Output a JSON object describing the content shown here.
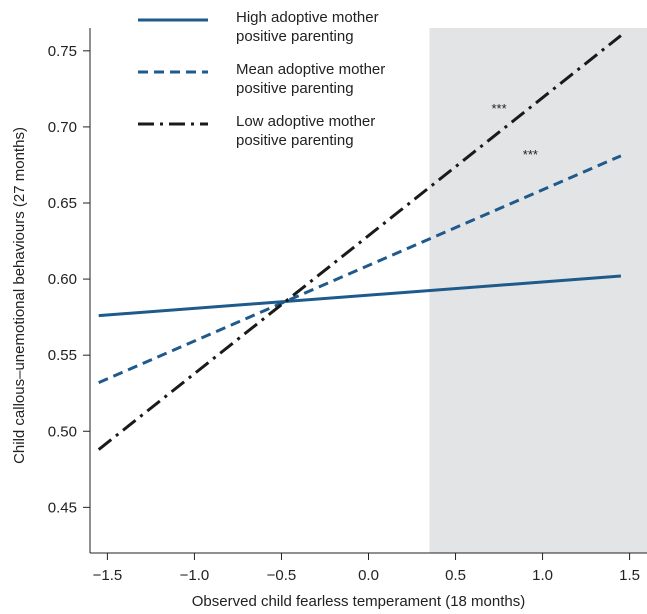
{
  "chart_data": {
    "type": "line",
    "title": "",
    "xlabel": "Observed child fearless temperament (18 months)",
    "ylabel": "Child callous–unemotional behaviours (27 months)",
    "xlim": [
      -1.6,
      1.6
    ],
    "ylim": [
      0.42,
      0.765
    ],
    "x_ticks": [
      -1.5,
      -1.0,
      -0.5,
      0.0,
      0.5,
      1.0,
      1.5
    ],
    "x_tick_labels": [
      "−1.5",
      "−1.0",
      "−0.5",
      "0.0",
      "0.5",
      "1.0",
      "1.5"
    ],
    "y_ticks": [
      0.45,
      0.5,
      0.55,
      0.6,
      0.65,
      0.7,
      0.75
    ],
    "y_tick_labels": [
      "0.45",
      "0.50",
      "0.55",
      "0.60",
      "0.65",
      "0.70",
      "0.75"
    ],
    "shaded_region": {
      "x_from": 0.35,
      "x_to": 1.6,
      "color": "#e3e4e6"
    },
    "series": [
      {
        "name": "High adoptive mother positive parenting",
        "x": [
          -1.55,
          1.45
        ],
        "y": [
          0.576,
          0.602
        ],
        "color": "#1f5a8c",
        "dash": "solid"
      },
      {
        "name": "Mean adoptive mother positive parenting",
        "x": [
          -1.55,
          1.45
        ],
        "y": [
          0.532,
          0.681
        ],
        "color": "#1f5a8c",
        "dash": "dashed"
      },
      {
        "name": "Low adoptive mother positive parenting",
        "x": [
          -1.55,
          1.45
        ],
        "y": [
          0.488,
          0.76
        ],
        "color": "#1a1a1a",
        "dash": "dashdot"
      }
    ],
    "legend": {
      "position": "top-left",
      "entries": [
        [
          "High adoptive mother",
          "positive parenting"
        ],
        [
          "Mean adoptive mother",
          "positive parenting"
        ],
        [
          "Low adoptive mother",
          "positive parenting"
        ]
      ]
    },
    "annotations": [
      {
        "text": "***",
        "x": 0.75,
        "y": 0.709
      },
      {
        "text": "***",
        "x": 0.93,
        "y": 0.679
      }
    ],
    "grid": false
  }
}
